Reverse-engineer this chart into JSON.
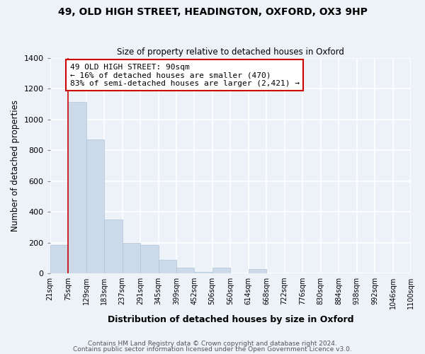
{
  "title": "49, OLD HIGH STREET, HEADINGTON, OXFORD, OX3 9HP",
  "subtitle": "Size of property relative to detached houses in Oxford",
  "xlabel": "Distribution of detached houses by size in Oxford",
  "ylabel": "Number of detached properties",
  "bar_color": "#ccd9e8",
  "bar_edge_color": "#b0c4d8",
  "background_color": "#edf2f9",
  "grid_color": "#ffffff",
  "bins": [
    21,
    75,
    129,
    183,
    237,
    291,
    345,
    399,
    452,
    506,
    560,
    614,
    668,
    722,
    776,
    830,
    884,
    938,
    992,
    1046,
    1100
  ],
  "bin_labels": [
    "21sqm",
    "75sqm",
    "129sqm",
    "183sqm",
    "237sqm",
    "291sqm",
    "345sqm",
    "399sqm",
    "452sqm",
    "506sqm",
    "560sqm",
    "614sqm",
    "668sqm",
    "722sqm",
    "776sqm",
    "830sqm",
    "884sqm",
    "938sqm",
    "992sqm",
    "1046sqm",
    "1100sqm"
  ],
  "values": [
    185,
    1115,
    870,
    350,
    200,
    185,
    90,
    35,
    10,
    35,
    0,
    30,
    0,
    0,
    0,
    0,
    0,
    0,
    0,
    0
  ],
  "red_line_x": 75,
  "red_line_color": "#cc0000",
  "annotation_text": "49 OLD HIGH STREET: 90sqm\n← 16% of detached houses are smaller (470)\n83% of semi-detached houses are larger (2,421) →",
  "annotation_box_color": "#ffffff",
  "annotation_box_edge": "#cc0000",
  "ylim": [
    0,
    1400
  ],
  "yticks": [
    0,
    200,
    400,
    600,
    800,
    1000,
    1200,
    1400
  ],
  "footer_line1": "Contains HM Land Registry data © Crown copyright and database right 2024.",
  "footer_line2": "Contains public sector information licensed under the Open Government Licence v3.0."
}
